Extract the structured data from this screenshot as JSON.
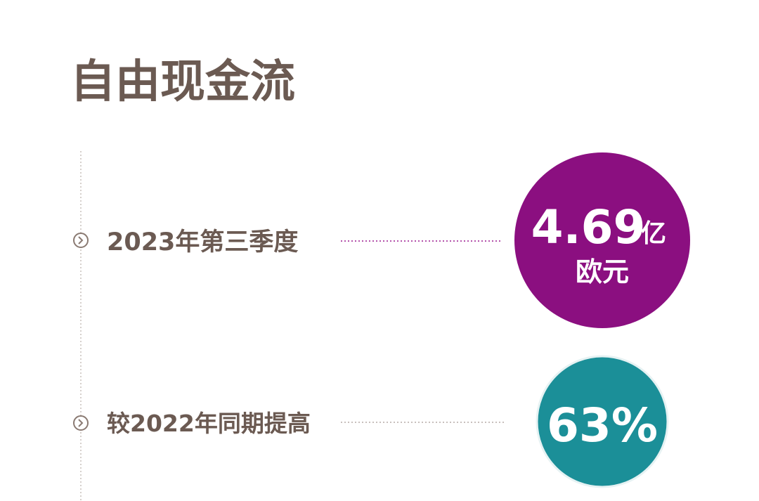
{
  "header": {
    "title": "自由现金流"
  },
  "items": [
    {
      "label": "2023年第三季度",
      "value": "4.69",
      "unit": "亿",
      "currency": "欧元"
    },
    {
      "label": "较2022年同期提高",
      "value": "63%"
    }
  ]
}
